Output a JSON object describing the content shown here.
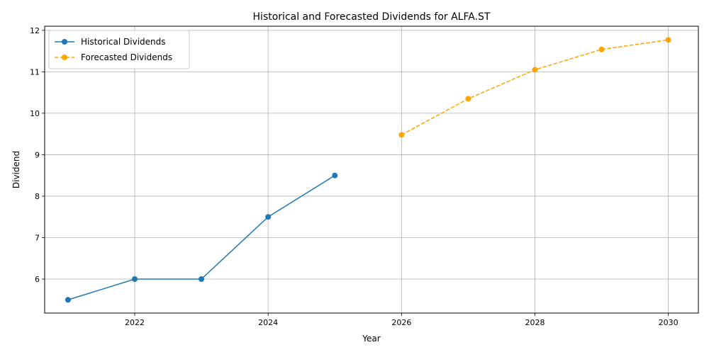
{
  "chart_data": {
    "type": "line",
    "title": "Historical and Forecasted Dividends for ALFA.ST",
    "xlabel": "Year",
    "ylabel": "Dividend",
    "xlim": [
      2020.65,
      2030.45
    ],
    "ylim": [
      5.18,
      12.1
    ],
    "xticks": [
      2022,
      2024,
      2026,
      2028,
      2030
    ],
    "yticks": [
      6,
      7,
      8,
      9,
      10,
      11,
      12
    ],
    "grid": true,
    "legend_position": "top-left",
    "series": [
      {
        "name": "Historical Dividends",
        "color": "#1f77b4",
        "line_style": "solid",
        "marker": "circle",
        "x": [
          2021,
          2022,
          2023,
          2024,
          2025
        ],
        "y": [
          5.5,
          6.0,
          6.0,
          7.5,
          8.5
        ]
      },
      {
        "name": "Forecasted Dividends",
        "color": "#ffa500",
        "line_style": "dashed",
        "marker": "circle",
        "x": [
          2026,
          2027,
          2028,
          2029,
          2030
        ],
        "y": [
          9.48,
          10.35,
          11.05,
          11.54,
          11.77
        ]
      }
    ]
  }
}
